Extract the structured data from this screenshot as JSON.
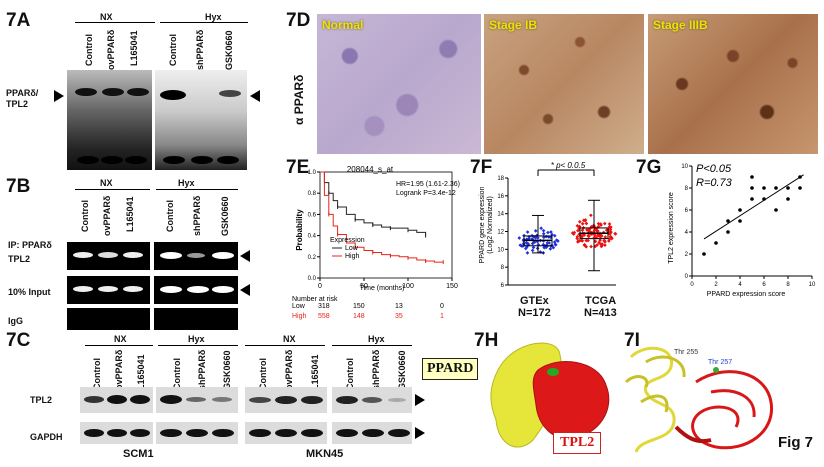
{
  "figure_label": "Fig 7",
  "p7a": {
    "label": "7A",
    "nx": "NX",
    "hyx": "Hyx",
    "lanes_nx": [
      "Control",
      "ovPPARδ",
      "L165041"
    ],
    "lanes_hyx": [
      "Control",
      "shPPARδ",
      "GSK0660"
    ],
    "band_label": "PPARδ/\nTPL2"
  },
  "p7b": {
    "label": "7B",
    "nx": "NX",
    "hyx": "Hyx",
    "lanes": [
      "Control",
      "ovPPARδ",
      "L165041",
      "Control",
      "shPPARδ",
      "GSK0660"
    ],
    "ip": "IP: PPARδ",
    "rows": [
      "TPL2",
      "10% Input",
      "IgG"
    ]
  },
  "p7c": {
    "label": "7C",
    "nx1": "NX",
    "hyx1": "Hyx",
    "nx2": "NX",
    "hyx2": "Hyx",
    "lanes": [
      "Control",
      "ovPPARδ",
      "L165041",
      "Control",
      "shPPARδ",
      "GSK0660"
    ],
    "rows": [
      "TPL2",
      "GAPDH"
    ],
    "cell1": "SCM1",
    "cell2": "MKN45"
  },
  "p7d": {
    "label": "7D",
    "ylabel": "α PPARδ",
    "panels": [
      "Normal",
      "Stage IB",
      "Stage IIIB"
    ]
  },
  "p7e": {
    "label": "7E",
    "title": "208044_s_at",
    "stats": [
      "HR=1.95 (1.61-2.36)",
      "Logrank P=3.4e-12"
    ],
    "ylabel": "Probability",
    "xlabel": "Time (months)",
    "legend_title": "Expression",
    "legend": [
      "Low",
      "High"
    ],
    "risk_title": "Number at risk",
    "risk_low_label": "Low",
    "risk_high_label": "High",
    "risk_low": [
      "318",
      "150",
      "13",
      "0"
    ],
    "risk_high": [
      "558",
      "148",
      "35",
      "1"
    ],
    "colors": {
      "low": "#222222",
      "high": "#e8241b"
    }
  },
  "p7f": {
    "label": "7F",
    "ylabel": [
      "PPARD gene expression",
      "(Log2 Normalized)"
    ],
    "sig": "* p< 0.0.5",
    "groups": [
      "GTEx",
      "TCGA"
    ],
    "ns": [
      "N=172",
      "N=413"
    ],
    "colors": {
      "gtex": "#2233dd",
      "tcga": "#ee1111"
    }
  },
  "p7g": {
    "label": "7G",
    "stats": [
      "P<0.05",
      "R=0.73"
    ],
    "ylabel": "TPL2 expression score",
    "xlabel": "PPARD expression score"
  },
  "p7h": {
    "label": "7H",
    "ppard": "PPARD",
    "tpl2": "TPL2"
  },
  "p7i": {
    "label": "7I",
    "residue1": "Thr 255",
    "residue2": "Thr 257"
  },
  "chart_data": [
    {
      "type": "line",
      "title": "208044_s_at",
      "xlabel": "Time (months)",
      "ylabel": "Probability",
      "xlim": [
        0,
        150
      ],
      "ylim": [
        0,
        1
      ],
      "xticks": [
        0,
        50,
        100,
        150
      ],
      "yticks": [
        0,
        0.2,
        0.4,
        0.6,
        0.8,
        1.0
      ],
      "series": [
        {
          "name": "Low",
          "x": [
            0,
            5,
            10,
            15,
            20,
            30,
            40,
            50,
            60,
            70,
            80,
            90,
            100,
            110,
            120
          ],
          "y": [
            1.0,
            0.9,
            0.8,
            0.73,
            0.67,
            0.6,
            0.55,
            0.52,
            0.5,
            0.48,
            0.47,
            0.47,
            0.45,
            0.43,
            0.4
          ]
        },
        {
          "name": "High",
          "x": [
            0,
            5,
            10,
            15,
            20,
            30,
            40,
            50,
            60,
            70,
            80,
            90,
            100,
            110,
            120,
            130,
            140
          ],
          "y": [
            1.0,
            0.78,
            0.6,
            0.49,
            0.41,
            0.33,
            0.29,
            0.26,
            0.24,
            0.22,
            0.21,
            0.2,
            0.19,
            0.17,
            0.16,
            0.15,
            0.15
          ]
        }
      ]
    },
    {
      "type": "scatter",
      "ylabel": "PPARD gene expression (Log2 Normalized)",
      "categories": [
        "GTEx",
        "TCGA"
      ],
      "ylim": [
        6,
        18
      ],
      "yticks": [
        6,
        8,
        10,
        12,
        14,
        16,
        18
      ],
      "series": [
        {
          "name": "GTEx",
          "median": 11.0,
          "q1": 10.4,
          "q3": 11.5,
          "min": 9.6,
          "max": 13.8
        },
        {
          "name": "TCGA",
          "median": 11.8,
          "q1": 11.2,
          "q3": 12.4,
          "min": 7.6,
          "max": 15.5
        }
      ]
    },
    {
      "type": "scatter",
      "xlabel": "PPARD expression score",
      "ylabel": "TPL2 expression score",
      "xlim": [
        0,
        10
      ],
      "ylim": [
        0,
        10
      ],
      "xticks": [
        0,
        2,
        4,
        6,
        8,
        10
      ],
      "yticks": [
        0,
        2,
        4,
        6,
        8,
        10
      ],
      "x": [
        1,
        2,
        3,
        3,
        4,
        4,
        5,
        5,
        5,
        6,
        6,
        7,
        7,
        8,
        8,
        9,
        9
      ],
      "y": [
        2,
        3,
        4,
        5,
        5,
        6,
        7,
        8,
        9,
        7,
        8,
        6,
        8,
        7,
        8,
        8,
        9
      ]
    }
  ]
}
